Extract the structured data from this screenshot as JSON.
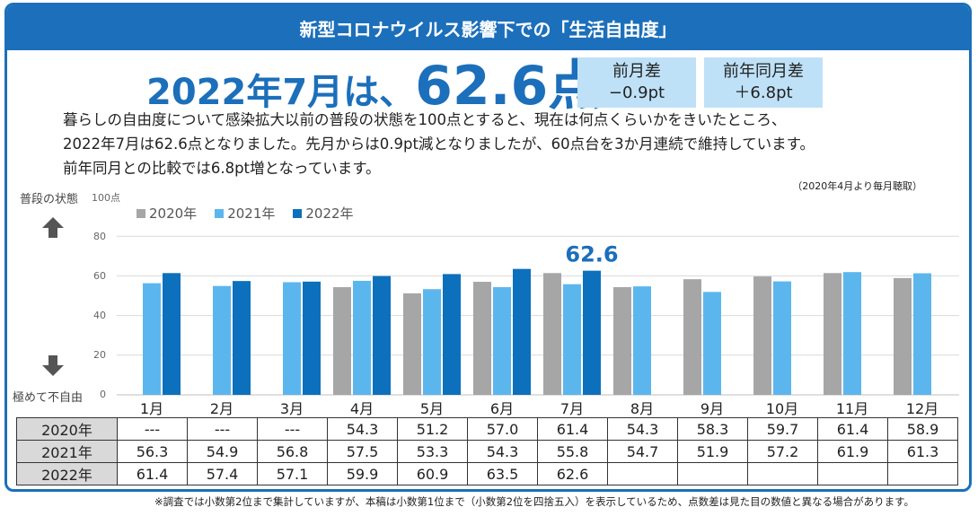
{
  "header": {
    "title": "新型コロナウイルス影響下での「生活自由度」"
  },
  "headline": {
    "prefix": "2022年7月は、",
    "value": "62.6点"
  },
  "mom_box": {
    "label": "前月差",
    "value": "−0.9pt"
  },
  "yoy_box": {
    "label": "前年同月差",
    "value": "＋6.8pt"
  },
  "description": [
    "暮らしの自由度について感染拡大以前の普段の状態を100点とすると、現在は何点くらいかをきいたところ、",
    "2022年7月は62.6点となりました。先月からは0.9pt減となりましたが、60点台を3か月連続で維持しています。",
    "前年同月との比較では6.8pt増となっています。"
  ],
  "survey_note": "（2020年4月より毎月聴取）",
  "axis": {
    "top_label": "普段の状態",
    "bottom_label": "極めて不自由",
    "ticks": [
      "100点",
      "80",
      "60",
      "40",
      "20",
      "0"
    ]
  },
  "footnote": "※調査では小数第2位まで集計していますが、本稿は小数第1位まで（小数第2位を四捨五入）を表示しているため、点数差は見た目の数値と異なる場合があります。",
  "chart_data": {
    "type": "bar",
    "categories": [
      "1月",
      "2月",
      "3月",
      "4月",
      "5月",
      "6月",
      "7月",
      "8月",
      "9月",
      "10月",
      "11月",
      "12月"
    ],
    "series": [
      {
        "name": "2020年",
        "color": "#a6a6a6",
        "values": [
          null,
          null,
          null,
          54.3,
          51.2,
          57.0,
          61.4,
          54.3,
          58.3,
          59.7,
          61.4,
          58.9
        ],
        "labels": [
          "---",
          "---",
          "---",
          "54.3",
          "51.2",
          "57.0",
          "61.4",
          "54.3",
          "58.3",
          "59.7",
          "61.4",
          "58.9"
        ]
      },
      {
        "name": "2021年",
        "color": "#5cb6ee",
        "values": [
          56.3,
          54.9,
          56.8,
          57.5,
          53.3,
          54.3,
          55.8,
          54.7,
          51.9,
          57.2,
          61.9,
          61.3
        ],
        "labels": [
          "56.3",
          "54.9",
          "56.8",
          "57.5",
          "53.3",
          "54.3",
          "55.8",
          "54.7",
          "51.9",
          "57.2",
          "61.9",
          "61.3"
        ]
      },
      {
        "name": "2022年",
        "color": "#0d70bc",
        "values": [
          61.4,
          57.4,
          57.1,
          59.9,
          60.9,
          63.5,
          62.6,
          null,
          null,
          null,
          null,
          null
        ],
        "labels": [
          "61.4",
          "57.4",
          "57.1",
          "59.9",
          "60.9",
          "63.5",
          "62.6",
          "",
          "",
          "",
          "",
          ""
        ]
      }
    ],
    "annotation": {
      "category": "7月",
      "series": "2022年",
      "text": "62.6"
    },
    "ylim": [
      0,
      100
    ],
    "legend": "top-left",
    "grid": true
  }
}
